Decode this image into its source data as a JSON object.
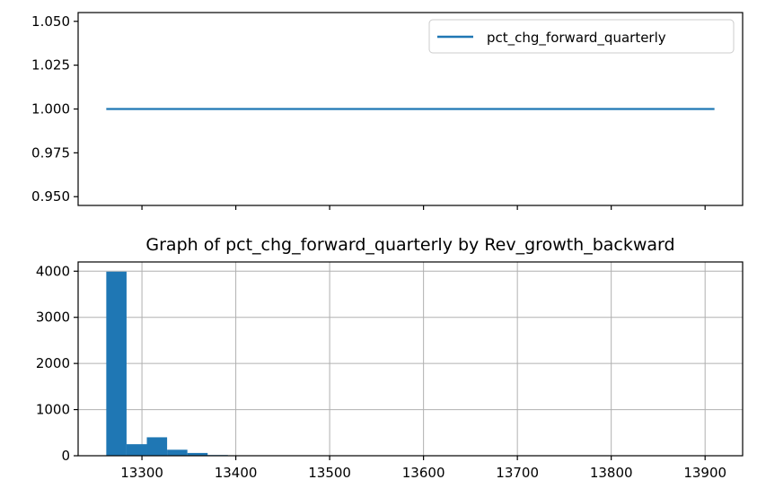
{
  "chart_data": [
    {
      "type": "line",
      "title": "",
      "xlabel": "",
      "ylabel": "",
      "x": [
        13262,
        13910
      ],
      "series": [
        {
          "name": "pct_chg_forward_quarterly",
          "values": [
            1.0,
            1.0
          ],
          "color": "#1f77b4"
        }
      ],
      "xlim": [
        13232,
        13940
      ],
      "ylim": [
        0.945,
        1.055
      ],
      "yticks": [
        "0.950",
        "0.975",
        "1.000",
        "1.025",
        "1.050"
      ],
      "ytick_values": [
        0.95,
        0.975,
        1.0,
        1.025,
        1.05
      ],
      "xtick_values": [
        13300,
        13400,
        13500,
        13600,
        13700,
        13800,
        13900
      ],
      "xtick_labels_visible": false,
      "grid": false,
      "legend": {
        "placement": "top-right",
        "entries": [
          "pct_chg_forward_quarterly"
        ]
      }
    },
    {
      "type": "bar",
      "subtype": "histogram",
      "title": "Graph of pct_chg_forward_quarterly by Rev_growth_backward",
      "xlabel": "",
      "ylabel": "",
      "bin_start": 13262,
      "bin_width": 21.6,
      "values": [
        3990,
        250,
        400,
        130,
        60,
        15,
        8,
        5,
        4,
        3,
        3,
        2,
        2,
        2,
        2,
        2,
        1,
        1,
        1,
        1,
        1,
        1,
        1,
        1,
        1,
        1,
        1,
        1,
        1,
        1
      ],
      "color": "#1f77b4",
      "xlim": [
        13232,
        13940
      ],
      "ylim": [
        0,
        4200
      ],
      "xticks": [
        "13300",
        "13400",
        "13500",
        "13600",
        "13700",
        "13800",
        "13900"
      ],
      "xtick_values": [
        13300,
        13400,
        13500,
        13600,
        13700,
        13800,
        13900
      ],
      "yticks": [
        "0",
        "1000",
        "2000",
        "3000",
        "4000"
      ],
      "ytick_values": [
        0,
        1000,
        2000,
        3000,
        4000
      ],
      "grid": true
    }
  ]
}
